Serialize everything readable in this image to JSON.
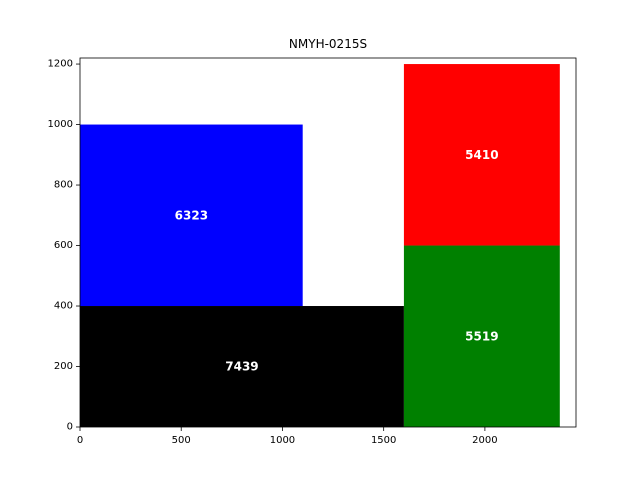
{
  "chart_data": {
    "type": "rectangle-packing",
    "title": "NMYH-0215S",
    "xlabel": "",
    "ylabel": "",
    "xlim": [
      0,
      2450
    ],
    "ylim": [
      0,
      1220
    ],
    "xticks": [
      0,
      500,
      1000,
      1500,
      2000
    ],
    "yticks": [
      0,
      200,
      400,
      600,
      800,
      1000,
      1200
    ],
    "grid": false,
    "legend": false,
    "rects": [
      {
        "label": "7439",
        "x": 0,
        "y": 0,
        "width": 1600,
        "height": 400,
        "color": "#000000"
      },
      {
        "label": "6323",
        "x": 0,
        "y": 400,
        "width": 1100,
        "height": 600,
        "color": "#0000ff"
      },
      {
        "label": "5519",
        "x": 1600,
        "y": 0,
        "width": 770,
        "height": 600,
        "color": "#008000"
      },
      {
        "label": "5410",
        "x": 1600,
        "y": 600,
        "width": 770,
        "height": 600,
        "color": "#ff0000"
      }
    ]
  }
}
